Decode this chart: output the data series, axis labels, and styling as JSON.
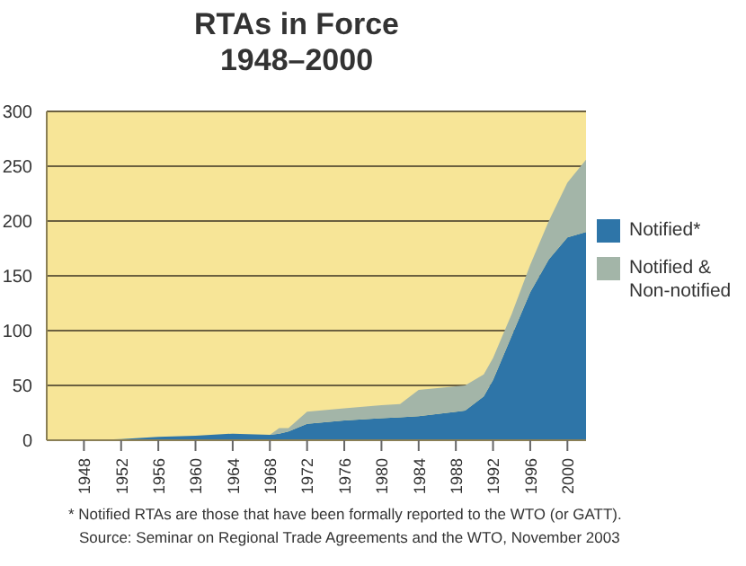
{
  "chart_data": {
    "type": "area",
    "title": "RTAs in Force",
    "subtitle": "1948–2000",
    "stacked": true,
    "x": [
      1944,
      1948,
      1952,
      1956,
      1960,
      1964,
      1968,
      1969,
      1970,
      1972,
      1976,
      1980,
      1982,
      1984,
      1989,
      1991,
      1992,
      1993,
      1994,
      1996,
      1998,
      2000,
      2002
    ],
    "series": [
      {
        "name": "Notified*",
        "color": "#2e75a8",
        "values": [
          0,
          0,
          1,
          3,
          4,
          6,
          5,
          6,
          8,
          15,
          18,
          20,
          21,
          22,
          27,
          40,
          55,
          75,
          95,
          135,
          165,
          185,
          190
        ]
      },
      {
        "name": "Notified & Non-notified",
        "color": "#a3b5a8",
        "values": [
          0,
          0,
          0,
          0,
          0,
          0,
          0,
          5,
          3,
          11,
          11,
          12,
          12,
          24,
          23,
          20,
          20,
          20,
          20,
          25,
          35,
          50,
          66
        ]
      }
    ],
    "xlim": [
      1944,
      2002
    ],
    "xticks": [
      1948,
      1952,
      1956,
      1960,
      1964,
      1968,
      1972,
      1976,
      1980,
      1984,
      1988,
      1992,
      1996,
      2000
    ],
    "ylim": [
      0,
      300
    ],
    "yticks": [
      0,
      50,
      100,
      150,
      200,
      250,
      300
    ],
    "grid": "y",
    "legend": "right",
    "annotations": [
      "* Notified RTAs are those that have been formally reported to the WTO (or GATT).",
      "Source: Seminar on Regional Trade Agreements and the WTO, November 2003"
    ]
  }
}
